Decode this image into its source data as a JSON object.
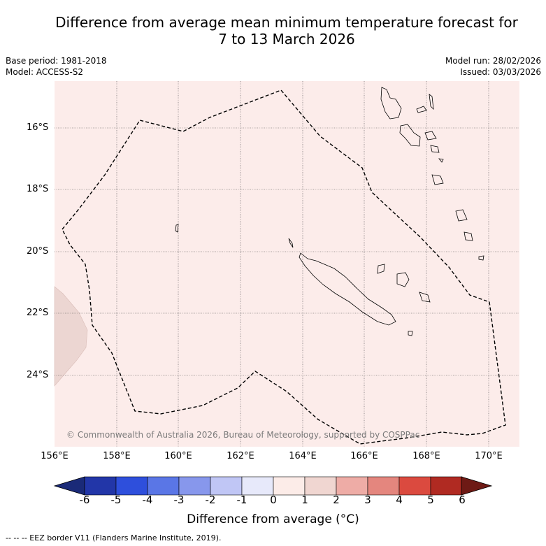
{
  "title": {
    "line1": "Difference from average mean minimum temperature forecast for",
    "line2": "7 to 13 March 2026"
  },
  "metadata": {
    "base_period": "Base period: 1981-2018",
    "model": "Model: ACCESS-S2",
    "model_run": "Model run: 28/02/2026",
    "issued": "Issued: 03/03/2026"
  },
  "map": {
    "lat_labels": [
      "16°S",
      "18°S",
      "20°S",
      "22°S",
      "24°S"
    ],
    "lon_labels": [
      "156°E",
      "158°E",
      "160°E",
      "162°E",
      "164°E",
      "166°E",
      "168°E",
      "170°E"
    ],
    "background_anomaly_class": "0 to 1",
    "west_edge_anomaly_class": "1 to 2",
    "copyright": "© Commonwealth of Australia 2026, Bureau of Meteorology, supported by COSPPac"
  },
  "colorbar": {
    "ticks": [
      "-6",
      "-5",
      "-4",
      "-3",
      "-2",
      "-1",
      "0",
      "1",
      "2",
      "3",
      "4",
      "5",
      "6"
    ],
    "low_extend_color": "#1a2a78",
    "colors": [
      "#2236a8",
      "#2e4fdc",
      "#5a76e6",
      "#8797ec",
      "#c0c6f5",
      "#e7e9fa",
      "#fcece8",
      "#f0d6d1",
      "#eeaca6",
      "#e4867e",
      "#db4a3f",
      "#b02a22"
    ],
    "high_extend_color": "#6e1a15",
    "label": "Difference from average (°C)"
  },
  "legend": {
    "eez_line": "-- -- -- EEZ border V11 (Flanders Marine Institute, 2019)."
  }
}
